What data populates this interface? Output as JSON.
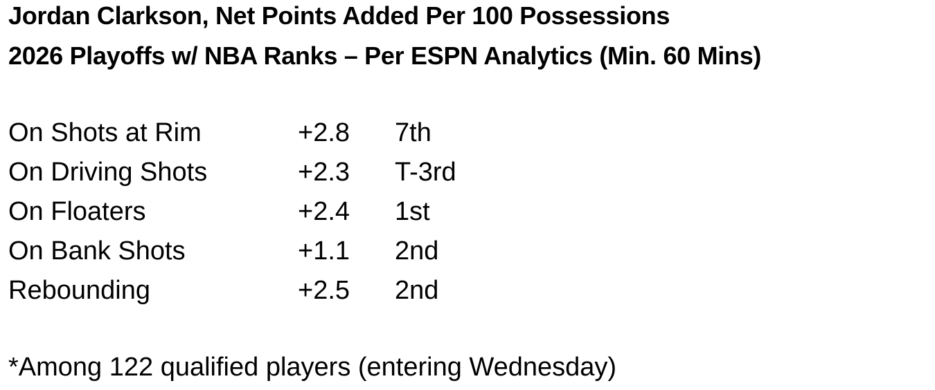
{
  "title": {
    "line1": "Jordan Clarkson, Net Points Added Per 100 Possessions",
    "line2": "2026 Playoffs w/ NBA Ranks – Per ESPN Analytics (Min. 60 Mins)"
  },
  "rows": [
    {
      "label": "On Shots at Rim",
      "value": "+2.8",
      "rank": "7th"
    },
    {
      "label": "On Driving Shots",
      "value": "+2.3",
      "rank": "T-3rd"
    },
    {
      "label": "On Floaters",
      "value": "+2.4",
      "rank": "1st"
    },
    {
      "label": "On Bank Shots",
      "value": "+1.1",
      "rank": "2nd"
    },
    {
      "label": "Rebounding",
      "value": "+2.5",
      "rank": "2nd"
    }
  ],
  "footnote": "*Among 122 qualified players (entering Wednesday)"
}
